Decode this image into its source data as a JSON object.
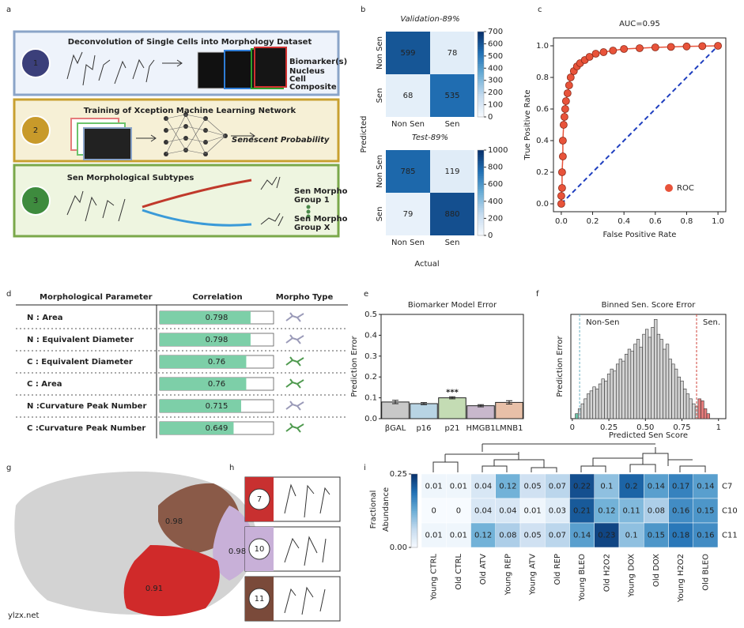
{
  "panel_labels": [
    "a",
    "b",
    "c",
    "d",
    "e",
    "f",
    "g",
    "h",
    "i"
  ],
  "workflow": {
    "steps": [
      {
        "number": "1",
        "title": "Deconvolution of Single Cells into Morphology Dataset",
        "labels": [
          "Biomarker(s)",
          "Nucleus",
          "Cell",
          "Composite"
        ]
      },
      {
        "number": "2",
        "title": "Training of Xception Machine Learning Network",
        "labels": [
          "Senescent Probability"
        ]
      },
      {
        "number": "3",
        "title": "Sen Morphological Subtypes",
        "labels": [
          "Sen Morpho",
          "Group 1",
          "Sen Morpho",
          "Group X"
        ]
      }
    ]
  },
  "chart_data": [
    {
      "type": "heatmap",
      "title": "Validation-89%",
      "y_label": "Predicted",
      "x_categories": [
        "Non Sen",
        "Sen"
      ],
      "y_categories": [
        "Non Sen",
        "Sen"
      ],
      "values": [
        [
          599,
          78
        ],
        [
          68,
          535
        ]
      ],
      "zlim": [
        0,
        700
      ],
      "zticks": [
        0,
        100,
        200,
        300,
        400,
        500,
        600,
        700
      ],
      "colormap": [
        "#f7fbff",
        "#c6dbef",
        "#6baed6",
        "#2171b5",
        "#08306b"
      ]
    },
    {
      "type": "heatmap",
      "title": "Test-89%",
      "x_label": "Actual",
      "x_categories": [
        "Non Sen",
        "Sen"
      ],
      "y_categories": [
        "Non Sen",
        "Sen"
      ],
      "values": [
        [
          785,
          119
        ],
        [
          79,
          880
        ]
      ],
      "zlim": [
        0,
        1000
      ],
      "zticks": [
        0,
        200,
        400,
        600,
        800,
        1000
      ],
      "colormap": [
        "#f7fbff",
        "#c6dbef",
        "#6baed6",
        "#2171b5",
        "#08306b"
      ]
    },
    {
      "type": "line",
      "title": "AUC=0.95",
      "x_label": "False Positive Rate",
      "y_label": "True Positive Rate",
      "x": [
        0,
        0,
        0.005,
        0.005,
        0.01,
        0.01,
        0.015,
        0.02,
        0.025,
        0.03,
        0.04,
        0.05,
        0.06,
        0.08,
        0.1,
        0.12,
        0.15,
        0.18,
        0.22,
        0.27,
        0.33,
        0.4,
        0.5,
        0.6,
        0.7,
        0.8,
        0.9,
        1
      ],
      "series": [
        {
          "name": "ROC",
          "color": "#e8533a",
          "values": [
            0,
            0.05,
            0.1,
            0.2,
            0.3,
            0.4,
            0.5,
            0.55,
            0.6,
            0.65,
            0.7,
            0.75,
            0.8,
            0.84,
            0.87,
            0.89,
            0.91,
            0.93,
            0.95,
            0.96,
            0.97,
            0.98,
            0.985,
            0.99,
            0.993,
            0.996,
            0.998,
            1
          ]
        }
      ],
      "reference_color": "#1f3fbf",
      "xlim": [
        -0.05,
        1.05
      ],
      "ylim": [
        -0.05,
        1.05
      ],
      "xticks": [
        {
          "value": 0,
          "label": "0.0"
        },
        0.2,
        0.4,
        0.6,
        0.8,
        {
          "value": 1,
          "label": "1.0"
        }
      ],
      "yticks": [
        {
          "value": 0,
          "label": "0.0"
        },
        0.2,
        0.4,
        0.6,
        0.8,
        {
          "value": 1,
          "label": "1.0"
        }
      ],
      "legend": "lower right"
    },
    {
      "type": "table_bars",
      "columns": [
        "Morphological Parameter",
        "Correlation",
        "Morpho Type"
      ],
      "categories": [
        "N : Area",
        "N : Equivalent Diameter",
        "C : Equivalent Diameter",
        "C : Area",
        "N :Curvature Peak Number",
        "C :Curvature Peak Number"
      ],
      "values": [
        0.798,
        0.798,
        0.76,
        0.76,
        0.715,
        0.649
      ],
      "xlim": [
        0,
        1
      ],
      "color": "#7dcfa8",
      "icon_colors": [
        "#9a9ab8",
        "#9a9ab8",
        "#4f9a4f",
        "#4f9a4f",
        "#9a9ab8",
        "#4f9a4f"
      ]
    },
    {
      "type": "bar",
      "title": "Biomarker Model Error",
      "y_label": "Prediction Error",
      "categories": [
        "βGAL",
        "p16",
        "p21",
        "HMGB1",
        "LMNB1"
      ],
      "values": [
        0.08,
        0.072,
        0.1,
        0.062,
        0.078
      ],
      "errors": [
        0.008,
        0.005,
        0.005,
        0.005,
        0.008
      ],
      "colors": [
        "#c8c8c8",
        "#b8d4e4",
        "#c4dcb4",
        "#c8b8cc",
        "#e8c0a8"
      ],
      "ylim": [
        0,
        0.5
      ],
      "yticks": [
        {
          "value": 0,
          "label": "0.0"
        },
        0.1,
        0.2,
        0.3,
        0.4,
        0.5
      ],
      "annotations": [
        {
          "text": "***",
          "category": 2
        }
      ]
    },
    {
      "type": "histogram",
      "title": "Binned Sen. Score Error",
      "x_label": "Predicted Sen Score",
      "y_label": "Prediction Error",
      "bins": [
        0.02,
        0.04,
        0.06,
        0.08,
        0.1,
        0.12,
        0.14,
        0.16,
        0.18,
        0.2,
        0.22,
        0.24,
        0.26,
        0.28,
        0.3,
        0.32,
        0.34,
        0.36,
        0.38,
        0.4,
        0.42,
        0.44,
        0.46,
        0.48,
        0.5,
        0.52,
        0.54,
        0.56,
        0.58,
        0.6,
        0.62,
        0.64,
        0.66,
        0.68,
        0.7,
        0.72,
        0.74,
        0.76,
        0.78,
        0.8,
        0.82,
        0.84,
        0.86,
        0.88,
        0.9,
        0.92,
        0.94
      ],
      "values": [
        0.05,
        0.1,
        0.15,
        0.2,
        0.25,
        0.28,
        0.32,
        0.3,
        0.35,
        0.4,
        0.38,
        0.45,
        0.5,
        0.48,
        0.55,
        0.6,
        0.58,
        0.65,
        0.7,
        0.68,
        0.75,
        0.8,
        0.72,
        0.85,
        0.9,
        0.82,
        0.92,
        1.0,
        0.85,
        0.8,
        0.7,
        0.75,
        0.6,
        0.55,
        0.5,
        0.42,
        0.38,
        0.3,
        0.25,
        0.2,
        0.15,
        0.12,
        0.2,
        0.18,
        0.1,
        0.05
      ],
      "bar_colors": [
        "#6cc4a8",
        "#d3d3d3",
        "#e57b7b"
      ],
      "xlim": [
        -0.01,
        1.05
      ],
      "ylim": [
        0,
        1.05
      ],
      "xticks": [
        0,
        0.25,
        {
          "value": 0.5,
          "label": "0.50"
        },
        0.75,
        1
      ],
      "annotations": [
        {
          "text": "Non-Sen",
          "x": 0.05,
          "color": "#6ab0c0"
        },
        {
          "text": "Sen.",
          "x": 0.85,
          "color": "#d0453a"
        }
      ]
    },
    {
      "type": "heatmap",
      "z_label": [
        "Fractional",
        "Abundance"
      ],
      "x_categories": [
        "Young CTRL",
        "Old CTRL",
        "Old ATV",
        "Young REP",
        "Young ATV",
        "Old REP",
        "Young BLEO",
        "Old H2O2",
        "Young DOX",
        "Old DOX",
        "Young H2O2",
        "Old BLEO"
      ],
      "y_categories": [
        "C7",
        "C10",
        "C11"
      ],
      "y_label_colors": [
        "#a03a3a",
        "#a8a8a8",
        "#a03a3a"
      ],
      "values": [
        [
          0.01,
          0.01,
          0.04,
          0.12,
          0.05,
          0.07,
          0.22,
          0.1,
          0.2,
          0.14,
          0.17,
          0.14
        ],
        [
          0,
          0,
          0.04,
          0.04,
          0.01,
          0.03,
          0.21,
          0.12,
          0.11,
          0.08,
          0.16,
          0.15
        ],
        [
          0.01,
          0.01,
          0.12,
          0.08,
          0.05,
          0.07,
          0.14,
          0.23,
          0.1,
          0.15,
          0.18,
          0.16
        ]
      ],
      "zlim": [
        0,
        0.25
      ],
      "zticks": [
        {
          "value": 0,
          "label": "0.00"
        },
        {
          "value": 0.25,
          "label": "0.25"
        }
      ],
      "colormap": [
        "#f7fbff",
        "#c6dbef",
        "#6baed6",
        "#2171b5",
        "#08306b"
      ]
    }
  ],
  "umap": {
    "labels": [
      "0.98",
      "0.98",
      "0.91"
    ]
  },
  "subtypes": {
    "labels": [
      "7",
      "10",
      "11"
    ]
  },
  "watermark": "ylzx.net"
}
